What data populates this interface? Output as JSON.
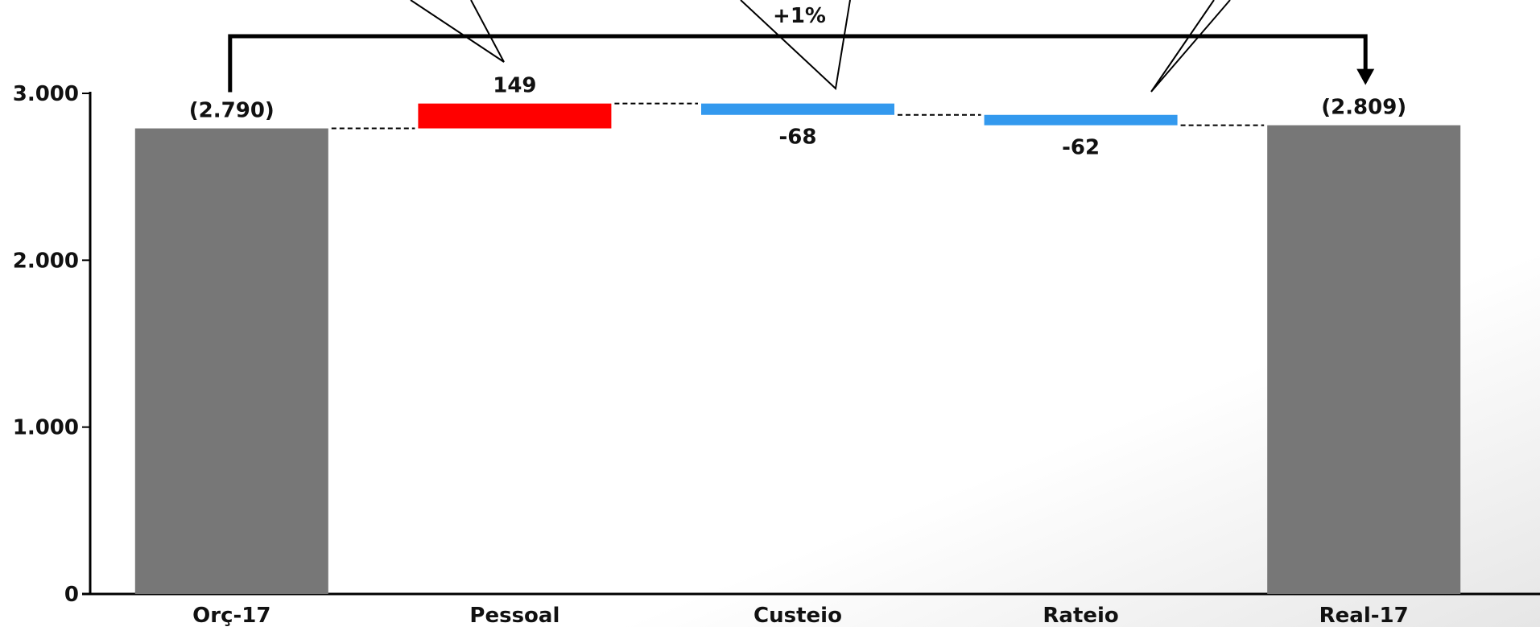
{
  "chart_data": {
    "type": "bar",
    "subtype": "waterfall",
    "categories": [
      "Orç-17",
      "Pessoal",
      "Custeio",
      "Rateio",
      "Real-17"
    ],
    "start_value": 2790,
    "deltas": [
      149,
      -68,
      -62
    ],
    "end_value": 2809,
    "data_labels": [
      "(2.790)",
      "149",
      "-68",
      "-62",
      "(2.809)"
    ],
    "y_ticks": [
      {
        "value": 0,
        "label": "0"
      },
      {
        "value": 1000,
        "label": "1.000"
      },
      {
        "value": 2000,
        "label": "2.000"
      },
      {
        "value": 3000,
        "label": "3.000"
      }
    ],
    "ylim": [
      0,
      3000
    ],
    "grid": false,
    "connectors": "dashed",
    "total_change_label": "+1%",
    "colors": {
      "total": "#777777",
      "increase": "#ff0000",
      "decrease": "#3399ee",
      "axis": "#000000"
    }
  }
}
